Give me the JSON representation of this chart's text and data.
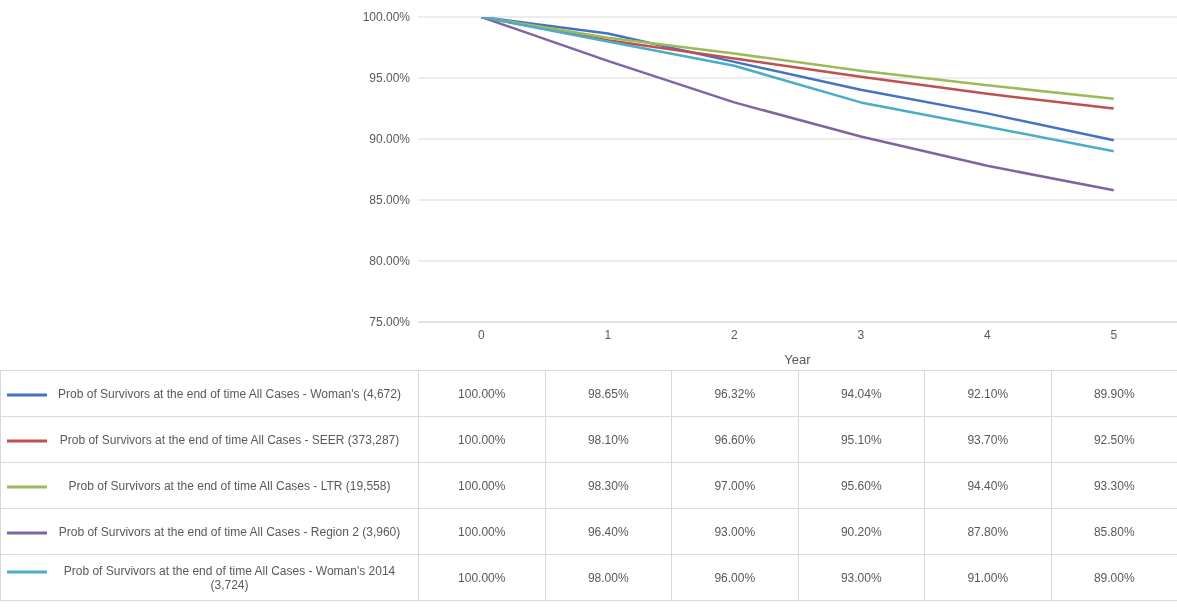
{
  "chart_data": {
    "type": "line",
    "xlabel": "Year",
    "categories": [
      "0",
      "1",
      "2",
      "3",
      "4",
      "5"
    ],
    "ylim": [
      75,
      100
    ],
    "yticks": [
      {
        "value": 75,
        "label": "75.00%"
      },
      {
        "value": 80,
        "label": "80.00%"
      },
      {
        "value": 85,
        "label": "85.00%"
      },
      {
        "value": 90,
        "label": "90.00%"
      },
      {
        "value": 95,
        "label": "95.00%"
      },
      {
        "value": 100,
        "label": "100.00%"
      }
    ],
    "grid": "y",
    "legend": "bottom",
    "marker": "none",
    "line_style": "solid",
    "series": [
      {
        "name": "Prob of Survivors at the end of time All Cases - Woman's (4,672)",
        "color": "#4472c4",
        "values": [
          100,
          98.65,
          96.32,
          94.04,
          92.1,
          89.9
        ],
        "value_labels": [
          "100.00%",
          "98.65%",
          "96.32%",
          "94.04%",
          "92.10%",
          "89.90%"
        ]
      },
      {
        "name": "Prob of Survivors at the end of time All Cases - SEER (373,287)",
        "color": "#c0504d",
        "values": [
          100,
          98.1,
          96.6,
          95.1,
          93.7,
          92.5
        ],
        "value_labels": [
          "100.00%",
          "98.10%",
          "96.60%",
          "95.10%",
          "93.70%",
          "92.50%"
        ]
      },
      {
        "name": "Prob of Survivors at the end of time All Cases - LTR (19,558)",
        "color": "#9bbb59",
        "values": [
          100,
          98.3,
          97.0,
          95.6,
          94.4,
          93.3
        ],
        "value_labels": [
          "100.00%",
          "98.30%",
          "97.00%",
          "95.60%",
          "94.40%",
          "93.30%"
        ]
      },
      {
        "name": "Prob of Survivors at the end of time All Cases - Region 2 (3,960)",
        "color": "#8064a2",
        "values": [
          100,
          96.4,
          93.0,
          90.2,
          87.8,
          85.8
        ],
        "value_labels": [
          "100.00%",
          "96.40%",
          "93.00%",
          "90.20%",
          "87.80%",
          "85.80%"
        ]
      },
      {
        "name": "Prob of Survivors at the end of time All Cases - Woman's 2014 (3,724)",
        "color": "#4bacc6",
        "values": [
          100,
          98.0,
          96.0,
          93.0,
          91.0,
          89.0
        ],
        "value_labels": [
          "100.00%",
          "98.00%",
          "96.00%",
          "93.00%",
          "91.00%",
          "89.00%"
        ]
      }
    ]
  }
}
